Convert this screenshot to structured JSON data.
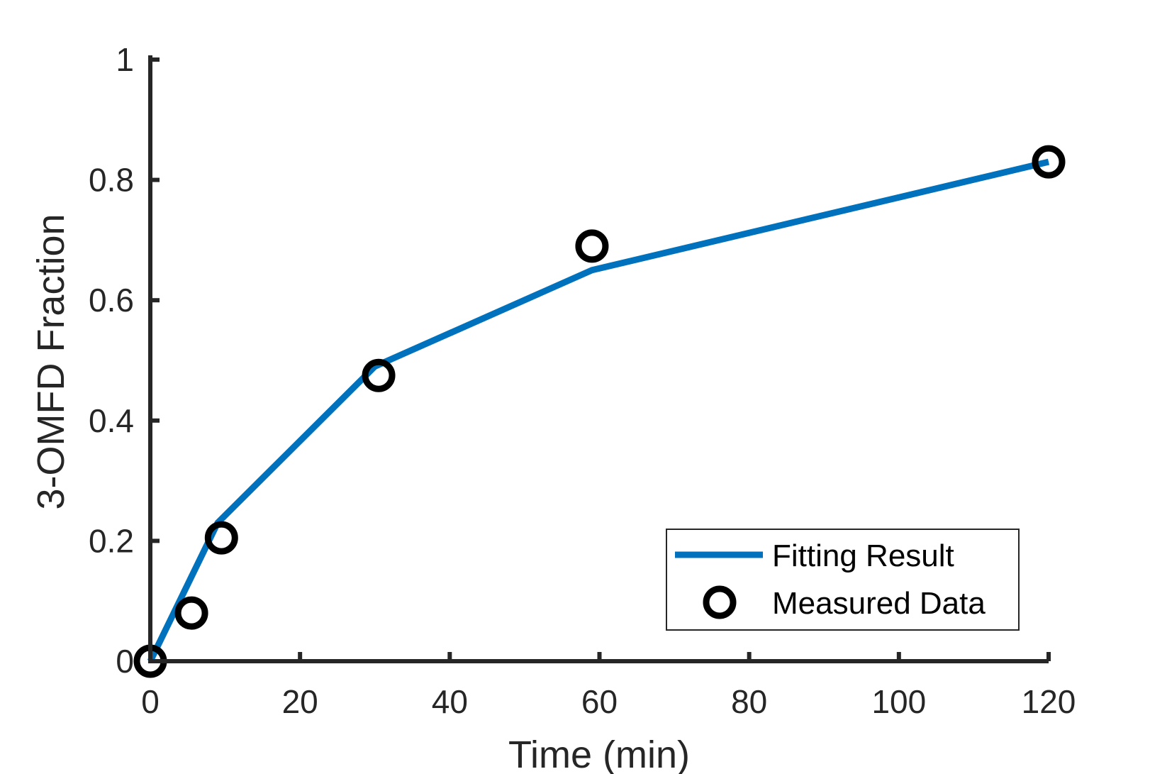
{
  "chart_data": {
    "type": "line",
    "xlabel": "Time (min)",
    "ylabel": "3-OMFD Fraction",
    "xlim": [
      0,
      120
    ],
    "ylim": [
      0,
      1
    ],
    "xticks": [
      0,
      20,
      40,
      60,
      80,
      100,
      120
    ],
    "yticks": [
      0,
      0.2,
      0.4,
      0.6,
      0.8,
      1
    ],
    "ytick_labels": [
      "0",
      "0.2",
      "0.4",
      "0.6",
      "0.8",
      "1"
    ],
    "grid": false,
    "legend_position": "bottom-right",
    "series": [
      {
        "name": "Fitting Result",
        "kind": "line",
        "color": "#0072BD",
        "x": [
          0,
          9,
          30,
          59,
          120
        ],
        "y": [
          0,
          0.23,
          0.49,
          0.65,
          0.83
        ]
      },
      {
        "name": "Measured Data",
        "kind": "scatter",
        "marker": "circle-open",
        "color": "#000000",
        "x": [
          0,
          5.5,
          9.5,
          30.5,
          59,
          120
        ],
        "y": [
          0,
          0.08,
          0.205,
          0.475,
          0.69,
          0.83
        ]
      }
    ]
  }
}
